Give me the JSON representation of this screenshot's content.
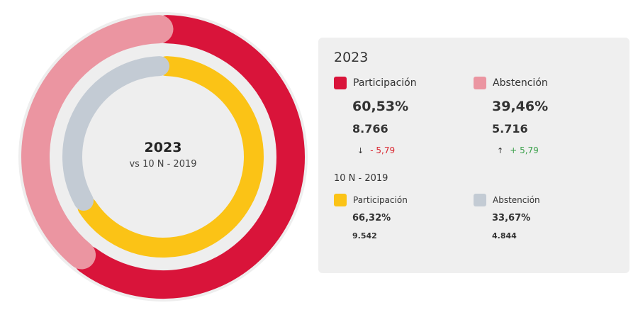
{
  "chart_data": {
    "type": "pie",
    "center": {
      "title": "2023",
      "subtitle": "vs 10 N - 2019"
    },
    "series": [
      {
        "name": "2023",
        "ring": "outer",
        "slices": [
          {
            "label": "Participación",
            "value": 60.53,
            "color": "#d9143a"
          },
          {
            "label": "Abstención",
            "value": 39.46,
            "color": "#eb95a1"
          }
        ]
      },
      {
        "name": "10 N - 2019",
        "ring": "inner",
        "slices": [
          {
            "label": "Participación",
            "value": 66.32,
            "color": "#fbc316"
          },
          {
            "label": "Abstención",
            "value": 33.67,
            "color": "#c3cbd4"
          }
        ]
      }
    ]
  },
  "panel": {
    "year": "2023",
    "current": [
      {
        "label": "Participación",
        "pct": "60,53%",
        "count": "8.766",
        "arrow": "↓",
        "delta": "- 5,79",
        "trend": "neg",
        "color": "#d9143a"
      },
      {
        "label": "Abstención",
        "pct": "39,46%",
        "count": "5.716",
        "arrow": "↑",
        "delta": "+ 5,79",
        "trend": "pos",
        "color": "#eb95a1"
      }
    ],
    "previous_title": "10 N - 2019",
    "previous": [
      {
        "label": "Participación",
        "pct": "66,32%",
        "count": "9.542",
        "color": "#fbc316"
      },
      {
        "label": "Abstención",
        "pct": "33,67%",
        "count": "4.844",
        "color": "#c3cbd4"
      }
    ]
  }
}
